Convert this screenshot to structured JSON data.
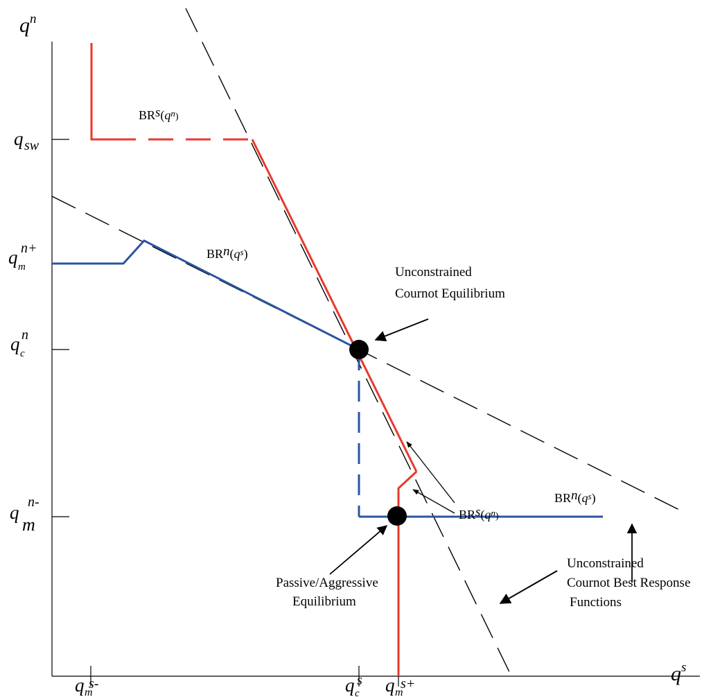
{
  "axes": {
    "y_axis_label": {
      "main": "q",
      "sup": "n"
    },
    "x_axis_label": {
      "main": "q",
      "sup": "s"
    }
  },
  "y_ticks": [
    {
      "id": "q-sw",
      "main": "q",
      "sub": "sw",
      "sup": ""
    },
    {
      "id": "q-m-n-plus",
      "main": "q",
      "sub": "m",
      "sup": "n+"
    },
    {
      "id": "q-c-n",
      "main": "q",
      "sub": "c",
      "sup": "n"
    },
    {
      "id": "q-m-n-minus",
      "main": "q",
      "sub": "m",
      "sup": "n-"
    }
  ],
  "x_ticks": [
    {
      "id": "q-m-s-minus",
      "main": "q",
      "sub": "m",
      "sup": "s-"
    },
    {
      "id": "q-c-s",
      "main": "q",
      "sub": "c",
      "sup": "s"
    },
    {
      "id": "q-m-s-plus",
      "main": "q",
      "sub": "m",
      "sup": "s+"
    }
  ],
  "curve_labels": [
    {
      "id": "brs-top",
      "prefix": "BR",
      "sup": "s",
      "arg_main": "q",
      "arg_sup": "n"
    },
    {
      "id": "brn-left",
      "prefix": "BR",
      "sup": "n",
      "arg_main": "q",
      "arg_sup": "s"
    },
    {
      "id": "brs-lower",
      "prefix": "BR",
      "sup": "s",
      "arg_main": "q",
      "arg_sup": "n"
    },
    {
      "id": "brn-right",
      "prefix": "BR",
      "sup": "n",
      "arg_main": "q",
      "arg_sup": "s"
    }
  ],
  "annotations": {
    "unconstrained_eq": [
      "Unconstrained",
      "Cournot Equilibrium"
    ],
    "passive_eq": [
      "Passive/Aggressive",
      "Equilibrium"
    ],
    "unconstrained_br": [
      "Unconstrained",
      "Cournot Best Response",
      "Functions"
    ]
  },
  "colors": {
    "red": "#e8392b",
    "blue": "#2a54a0",
    "black": "#000000"
  }
}
